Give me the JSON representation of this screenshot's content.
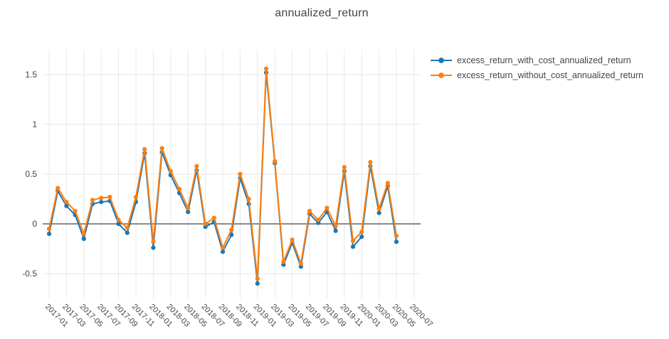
{
  "chart_data": {
    "type": "line",
    "title": "annualized_return",
    "x": [
      "2017-01",
      "2017-02",
      "2017-03",
      "2017-04",
      "2017-05",
      "2017-06",
      "2017-07",
      "2017-08",
      "2017-09",
      "2017-10",
      "2017-11",
      "2017-12",
      "2018-01",
      "2018-02",
      "2018-03",
      "2018-04",
      "2018-05",
      "2018-06",
      "2018-07",
      "2018-08",
      "2018-09",
      "2018-10",
      "2018-11",
      "2018-12",
      "2019-01",
      "2019-02",
      "2019-03",
      "2019-04",
      "2019-05",
      "2019-06",
      "2019-07",
      "2019-08",
      "2019-09",
      "2019-10",
      "2019-11",
      "2019-12",
      "2020-01",
      "2020-02",
      "2020-03",
      "2020-04",
      "2020-05"
    ],
    "series": [
      {
        "name": "excess_return_with_cost_annualized_return",
        "color": "#1f77b4",
        "values": [
          -0.1,
          0.33,
          0.18,
          0.09,
          -0.15,
          0.2,
          0.22,
          0.23,
          0.0,
          -0.09,
          0.22,
          0.71,
          -0.24,
          0.72,
          0.49,
          0.31,
          0.12,
          0.54,
          -0.03,
          0.02,
          -0.28,
          -0.11,
          0.46,
          0.2,
          -0.6,
          1.52,
          0.61,
          -0.41,
          -0.19,
          -0.43,
          0.1,
          0.01,
          0.12,
          -0.07,
          0.53,
          -0.23,
          -0.13,
          0.58,
          0.11,
          0.38,
          -0.18
        ]
      },
      {
        "name": "excess_return_without_cost_annualized_return",
        "color": "#ff7f0e",
        "values": [
          -0.05,
          0.36,
          0.22,
          0.13,
          -0.1,
          0.24,
          0.26,
          0.27,
          0.04,
          -0.04,
          0.27,
          0.75,
          -0.18,
          0.76,
          0.53,
          0.35,
          0.16,
          0.58,
          0.0,
          0.06,
          -0.24,
          -0.06,
          0.5,
          0.25,
          -0.55,
          1.56,
          0.63,
          -0.38,
          -0.16,
          -0.4,
          0.13,
          0.04,
          0.16,
          -0.02,
          0.57,
          -0.17,
          -0.08,
          0.62,
          0.15,
          0.41,
          -0.12
        ]
      }
    ],
    "xticks": [
      "2017-01",
      "2017-03",
      "2017-05",
      "2017-07",
      "2017-09",
      "2017-11",
      "2018-01",
      "2018-03",
      "2018-05",
      "2018-07",
      "2018-09",
      "2018-11",
      "2019-01",
      "2019-03",
      "2019-05",
      "2019-07",
      "2019-09",
      "2019-11",
      "2020-01",
      "2020-03",
      "2020-05",
      "2020-07"
    ],
    "yticks": [
      "-0.5",
      "0",
      "0.5",
      "1",
      "1.5"
    ],
    "ytick_values": [
      -0.5,
      0,
      0.5,
      1,
      1.5
    ],
    "ylim": [
      -0.75,
      1.75
    ],
    "grid": true,
    "legend_position": "top-right",
    "axis_text_color": "#444444",
    "grid_color": "#e8e8e8",
    "zeroline_color": "#444444"
  }
}
